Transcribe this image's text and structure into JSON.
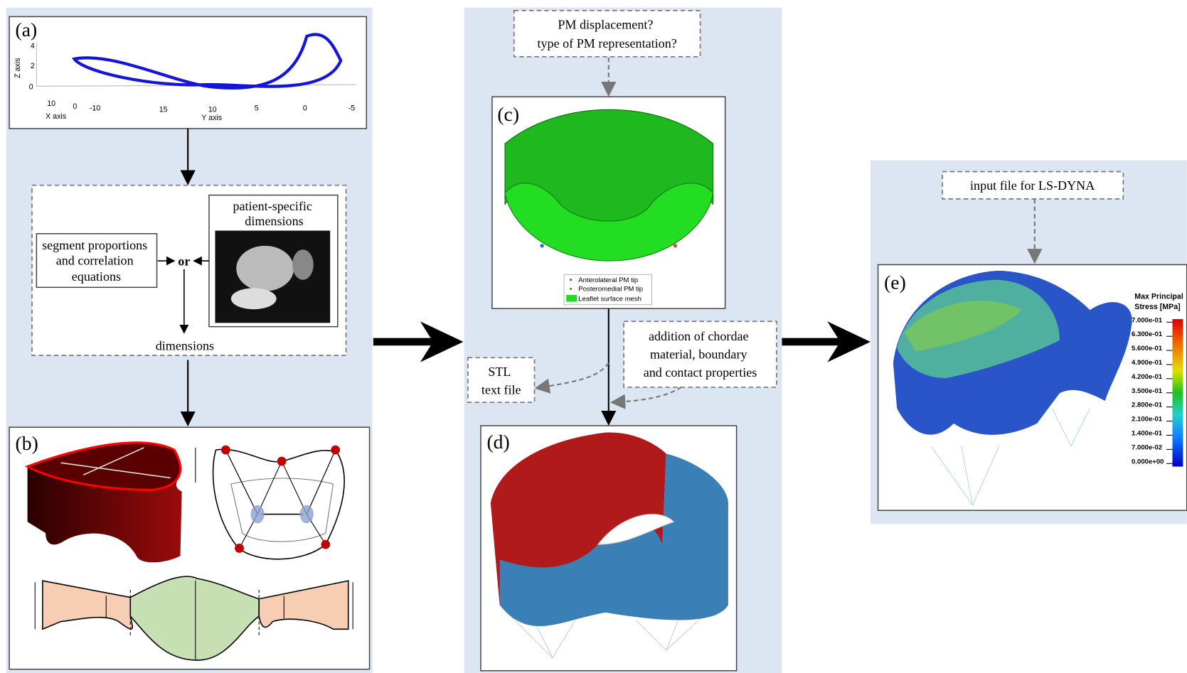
{
  "panel_a": {
    "label": "(a)",
    "x_axis_label": "X axis",
    "y_axis_label": "Y axis",
    "z_axis_label": "Z axis",
    "x_ticks": [
      "10",
      "0",
      "-10"
    ],
    "y_ticks": [
      "15",
      "10",
      "5",
      "0",
      "-5"
    ],
    "z_ticks": [
      "4",
      "2",
      "0"
    ]
  },
  "dimensions_box": {
    "patient_specific": [
      "patient-specific",
      "dimensions"
    ],
    "segment": [
      "segment proportions",
      "and correlation",
      "equations"
    ],
    "or": "or",
    "output": "dimensions"
  },
  "panel_b": {
    "label": "(b)"
  },
  "pm_question": [
    "PM displacement?",
    "type of PM representation?"
  ],
  "panel_c": {
    "label": "(c)",
    "legend": [
      "Anterolateral PM tip",
      "Posteromedial PM tip",
      "Leaflet surface mesh"
    ]
  },
  "stl_file": [
    "STL",
    "text file"
  ],
  "chordae_note": [
    "addition of chordae",
    "material, boundary",
    "and contact properties"
  ],
  "panel_d": {
    "label": "(d)"
  },
  "lsdyna_note": "input file for LS-DYNA",
  "panel_e": {
    "label": "(e)",
    "colorbar_title": [
      "Max Principal",
      "Stress [MPa]"
    ],
    "colorbar_labels": [
      "7.000e-01",
      "6.300e-01",
      "5.600e-01",
      "4.900e-01",
      "4.200e-01",
      "3.500e-01",
      "2.800e-01",
      "2.100e-01",
      "1.400e-01",
      "7.000e-02",
      "0.000e+00"
    ]
  }
}
